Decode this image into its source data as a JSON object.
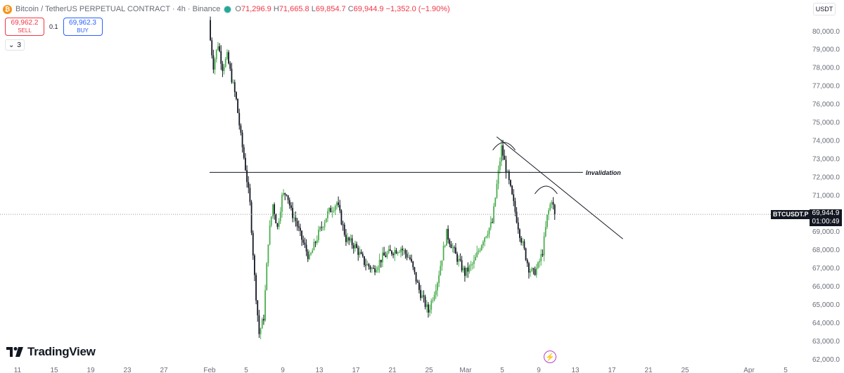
{
  "header": {
    "symbol_text": "Bitcoin / TetherUS PERPETUAL CONTRACT · 4h · Binance",
    "coin_glyph": "₿",
    "open": "71,296.9",
    "high": "71,665.8",
    "low": "69,854.7",
    "close": "69,944.9",
    "change": "−1,352.0 (−1.90%)",
    "o_label": "O",
    "h_label": "H",
    "l_label": "L",
    "c_label": "C"
  },
  "trade": {
    "sell_price": "69,962.2",
    "sell_label": "SELL",
    "spread": "0.1",
    "buy_price": "69,962.3",
    "buy_label": "BUY"
  },
  "indicators_toggle": {
    "chevron": "⌄",
    "count": "3"
  },
  "currency": "USDT",
  "logo_text": "TradingView",
  "current_price": {
    "symbol": "BTCUSDT.P",
    "price": "69,944.9",
    "countdown": "01:00:49"
  },
  "colors": {
    "up": "#4caf50",
    "down": "#131722",
    "drawing": "#131722",
    "axis_text": "#6a6d78",
    "price_line": "#9598a1"
  },
  "chart_data": {
    "type": "candlestick",
    "title": "Bitcoin / TetherUS PERPETUAL CONTRACT · 4h · Binance",
    "timeframe": "4h",
    "yaxis": {
      "ylim": [
        61800,
        81200
      ],
      "ticks": [
        62000,
        63000,
        64000,
        65000,
        66000,
        67000,
        68000,
        69000,
        70000,
        71000,
        72000,
        73000,
        74000,
        75000,
        76000,
        77000,
        78000,
        79000,
        80000
      ],
      "tick_labels": [
        "62,000.0",
        "63,000.0",
        "64,000.0",
        "65,000.0",
        "66,000.0",
        "67,000.0",
        "68,000.0",
        "69,000.0",
        "70,000.0",
        "71,000.0",
        "72,000.0",
        "73,000.0",
        "74,000.0",
        "75,000.0",
        "76,000.0",
        "77,000.0",
        "78,000.0",
        "79,000.0",
        "80,000.0"
      ]
    },
    "xaxis": {
      "ticks": [
        {
          "day": -21,
          "label": "11"
        },
        {
          "day": -17,
          "label": "15"
        },
        {
          "day": -13,
          "label": "19"
        },
        {
          "day": -9,
          "label": "23"
        },
        {
          "day": -5,
          "label": "27"
        },
        {
          "day": 0,
          "label": "Feb"
        },
        {
          "day": 4,
          "label": "5"
        },
        {
          "day": 8,
          "label": "9"
        },
        {
          "day": 12,
          "label": "13"
        },
        {
          "day": 16,
          "label": "17"
        },
        {
          "day": 20,
          "label": "21"
        },
        {
          "day": 24,
          "label": "25"
        },
        {
          "day": 28,
          "label": "Mar"
        },
        {
          "day": 32,
          "label": "5"
        },
        {
          "day": 36,
          "label": "9"
        },
        {
          "day": 40,
          "label": "13"
        },
        {
          "day": 44,
          "label": "17"
        },
        {
          "day": 48,
          "label": "21"
        },
        {
          "day": 52,
          "label": "25"
        },
        {
          "day": 59,
          "label": "Apr"
        },
        {
          "day": 63,
          "label": "5"
        }
      ]
    },
    "series": [
      {
        "type": "candles",
        "candles_per_day": 6,
        "start_day": 0,
        "close_path": [
          [
            0,
            80200
          ],
          [
            0.5,
            78100
          ],
          [
            1,
            79300
          ],
          [
            1.5,
            78000
          ],
          [
            2,
            78600
          ],
          [
            2.5,
            77400
          ],
          [
            3,
            76200
          ],
          [
            3.5,
            74200
          ],
          [
            4,
            72500
          ],
          [
            4.5,
            70500
          ],
          [
            5,
            66500
          ],
          [
            5.5,
            63400
          ],
          [
            6,
            64300
          ],
          [
            6.5,
            68500
          ],
          [
            7,
            70500
          ],
          [
            7.5,
            69200
          ],
          [
            8,
            70900
          ],
          [
            8.5,
            71200
          ],
          [
            9,
            70100
          ],
          [
            9.5,
            69600
          ],
          [
            10,
            68800
          ],
          [
            11,
            67500
          ],
          [
            12,
            68900
          ],
          [
            13,
            70000
          ],
          [
            14,
            70600
          ],
          [
            15,
            68600
          ],
          [
            16,
            68200
          ],
          [
            17,
            67300
          ],
          [
            18,
            66900
          ],
          [
            19,
            67600
          ],
          [
            20,
            67900
          ],
          [
            21,
            68100
          ],
          [
            22,
            67500
          ],
          [
            23,
            65800
          ],
          [
            24,
            64600
          ],
          [
            25,
            66300
          ],
          [
            26,
            68900
          ],
          [
            27,
            67700
          ],
          [
            28,
            66700
          ],
          [
            29,
            67300
          ],
          [
            30,
            68600
          ],
          [
            31,
            69500
          ],
          [
            32,
            73600
          ],
          [
            33,
            71300
          ],
          [
            34,
            68900
          ],
          [
            35,
            67000
          ],
          [
            35.5,
            66700
          ],
          [
            36,
            67100
          ],
          [
            36.5,
            67900
          ],
          [
            37,
            69800
          ],
          [
            37.5,
            70800
          ],
          [
            37.83,
            69944.9
          ]
        ]
      }
    ],
    "current_price": 69944.9,
    "annotations": {
      "horizontal_line": {
        "price": 72250,
        "from_day": 0,
        "to_day": 45.6,
        "label": "Invalidation"
      },
      "trend_line": {
        "from": [
          31.4,
          74200
        ],
        "to": [
          45.2,
          68600
        ]
      },
      "arcs": [
        {
          "day": 32.2,
          "price": 73700
        },
        {
          "day": 36.8,
          "price": 71300
        }
      ]
    }
  }
}
